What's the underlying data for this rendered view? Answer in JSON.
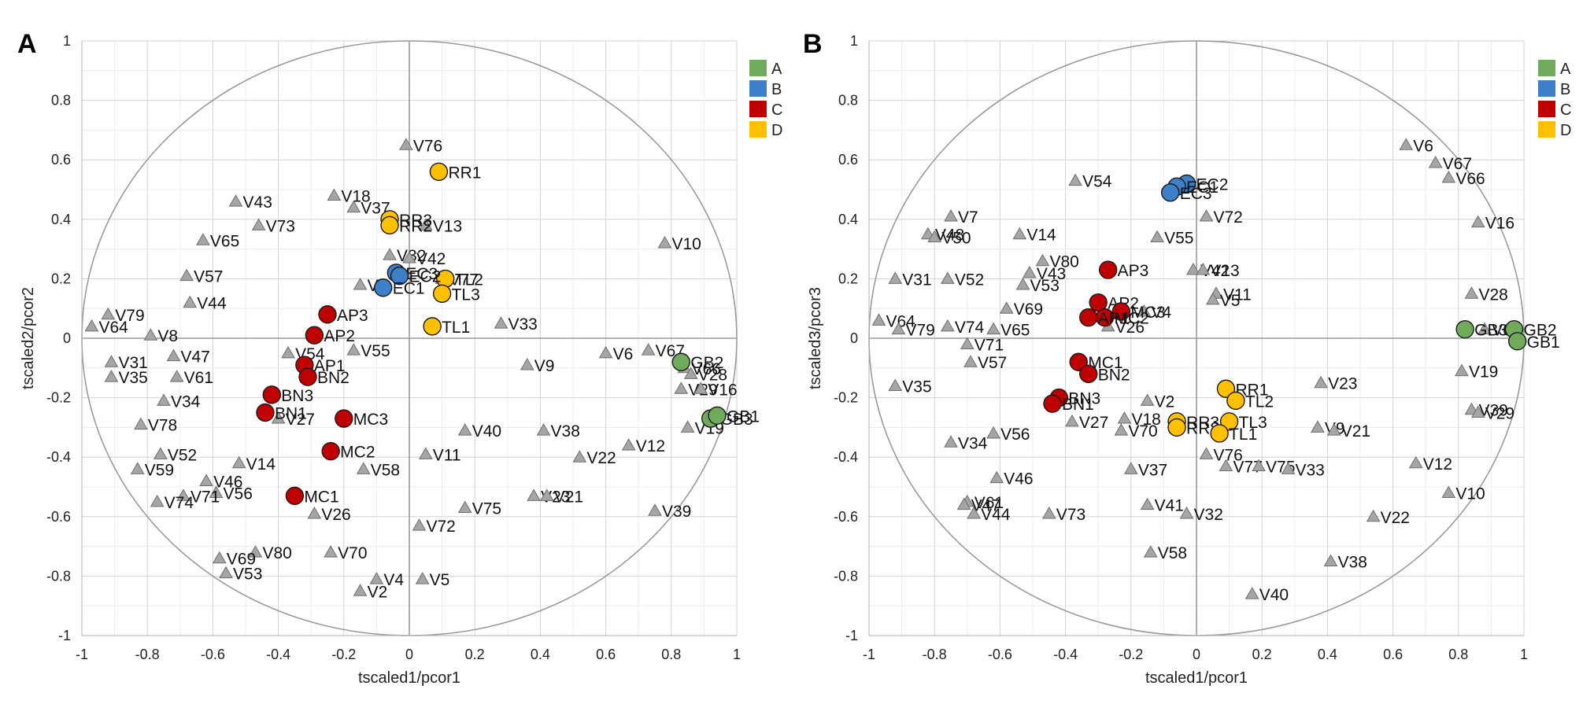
{
  "figure": {
    "panel_letters": [
      "A",
      "B"
    ]
  },
  "chart_data": [
    {
      "type": "scatter",
      "panel": "A",
      "title": "",
      "xlabel": "tscaled1/pcor1",
      "ylabel": "tscaled2/pcor2",
      "xlim": [
        -1,
        1
      ],
      "ylim": [
        -1,
        1
      ],
      "grid": true,
      "correlation_circle": true,
      "x_ticks": [
        "-1",
        "-0.8",
        "-0.6",
        "-0.4",
        "-0.2",
        "0",
        "0.2",
        "0.4",
        "0.6",
        "0.8",
        "1"
      ],
      "y_ticks": [
        "1",
        "0.8",
        "0.6",
        "0.4",
        "0.2",
        "0",
        "-0.2",
        "-0.4",
        "-0.6",
        "-0.8",
        "-1"
      ],
      "legend": {
        "position": "top-right",
        "entries": [
          {
            "label": "A",
            "color": "#6fab5a"
          },
          {
            "label": "B",
            "color": "#3d7fc8"
          },
          {
            "label": "C",
            "color": "#c00000"
          },
          {
            "label": "D",
            "color": "#ffc000"
          }
        ]
      },
      "variables": [
        {
          "label": "V76",
          "x": -0.01,
          "y": 0.65
        },
        {
          "label": "V43",
          "x": -0.53,
          "y": 0.46
        },
        {
          "label": "V18",
          "x": -0.23,
          "y": 0.48
        },
        {
          "label": "V37",
          "x": -0.17,
          "y": 0.44
        },
        {
          "label": "V13",
          "x": 0.05,
          "y": 0.38
        },
        {
          "label": "V73",
          "x": -0.46,
          "y": 0.38
        },
        {
          "label": "V65",
          "x": -0.63,
          "y": 0.33
        },
        {
          "label": "V10",
          "x": 0.78,
          "y": 0.32
        },
        {
          "label": "V32",
          "x": -0.06,
          "y": 0.28
        },
        {
          "label": "V42",
          "x": 0.0,
          "y": 0.27
        },
        {
          "label": "V57",
          "x": -0.68,
          "y": 0.21
        },
        {
          "label": "V7",
          "x": -0.15,
          "y": 0.18
        },
        {
          "label": "V77",
          "x": 0.1,
          "y": 0.2
        },
        {
          "label": "V44",
          "x": -0.67,
          "y": 0.12
        },
        {
          "label": "V79",
          "x": -0.92,
          "y": 0.08
        },
        {
          "label": "V64",
          "x": -0.97,
          "y": 0.04
        },
        {
          "label": "V8",
          "x": -0.79,
          "y": 0.01
        },
        {
          "label": "V33",
          "x": 0.28,
          "y": 0.05
        },
        {
          "label": "V55",
          "x": -0.17,
          "y": -0.04
        },
        {
          "label": "V54",
          "x": -0.37,
          "y": -0.05
        },
        {
          "label": "V47",
          "x": -0.72,
          "y": -0.06
        },
        {
          "label": "V31",
          "x": -0.91,
          "y": -0.08
        },
        {
          "label": "V6",
          "x": 0.6,
          "y": -0.05
        },
        {
          "label": "V67",
          "x": 0.73,
          "y": -0.04
        },
        {
          "label": "V9",
          "x": 0.36,
          "y": -0.09
        },
        {
          "label": "V35",
          "x": -0.91,
          "y": -0.13
        },
        {
          "label": "V61",
          "x": -0.71,
          "y": -0.13
        },
        {
          "label": "V66",
          "x": 0.84,
          "y": -0.1
        },
        {
          "label": "V28",
          "x": 0.86,
          "y": -0.12
        },
        {
          "label": "V34",
          "x": -0.75,
          "y": -0.21
        },
        {
          "label": "V29",
          "x": 0.83,
          "y": -0.17
        },
        {
          "label": "V16",
          "x": 0.89,
          "y": -0.17
        },
        {
          "label": "V27",
          "x": -0.4,
          "y": -0.27
        },
        {
          "label": "V78",
          "x": -0.82,
          "y": -0.29
        },
        {
          "label": "V40",
          "x": 0.17,
          "y": -0.31
        },
        {
          "label": "V38",
          "x": 0.41,
          "y": -0.31
        },
        {
          "label": "V19",
          "x": 0.85,
          "y": -0.3
        },
        {
          "label": "V12",
          "x": 0.67,
          "y": -0.36
        },
        {
          "label": "V52",
          "x": -0.76,
          "y": -0.39
        },
        {
          "label": "V11",
          "x": 0.05,
          "y": -0.39
        },
        {
          "label": "V22",
          "x": 0.52,
          "y": -0.4
        },
        {
          "label": "V14",
          "x": -0.52,
          "y": -0.42
        },
        {
          "label": "V58",
          "x": -0.14,
          "y": -0.44
        },
        {
          "label": "V59",
          "x": -0.83,
          "y": -0.44
        },
        {
          "label": "V46",
          "x": -0.62,
          "y": -0.48
        },
        {
          "label": "V56",
          "x": -0.59,
          "y": -0.52
        },
        {
          "label": "V71",
          "x": -0.69,
          "y": -0.53
        },
        {
          "label": "V74",
          "x": -0.77,
          "y": -0.55
        },
        {
          "label": "V23",
          "x": 0.38,
          "y": -0.53
        },
        {
          "label": "V21",
          "x": 0.42,
          "y": -0.53
        },
        {
          "label": "V75",
          "x": 0.17,
          "y": -0.57
        },
        {
          "label": "V39",
          "x": 0.75,
          "y": -0.58
        },
        {
          "label": "V26",
          "x": -0.29,
          "y": -0.59
        },
        {
          "label": "V72",
          "x": 0.03,
          "y": -0.63
        },
        {
          "label": "V80",
          "x": -0.47,
          "y": -0.72
        },
        {
          "label": "V70",
          "x": -0.24,
          "y": -0.72
        },
        {
          "label": "V69",
          "x": -0.58,
          "y": -0.74
        },
        {
          "label": "V53",
          "x": -0.56,
          "y": -0.79
        },
        {
          "label": "V4",
          "x": -0.1,
          "y": -0.81
        },
        {
          "label": "V5",
          "x": 0.04,
          "y": -0.81
        },
        {
          "label": "V2",
          "x": -0.15,
          "y": -0.85
        }
      ],
      "observations": [
        {
          "label": "RR1",
          "group": "D",
          "x": 0.09,
          "y": 0.56
        },
        {
          "label": "RR3",
          "group": "D",
          "x": -0.06,
          "y": 0.4
        },
        {
          "label": "RR2",
          "group": "D",
          "x": -0.06,
          "y": 0.38
        },
        {
          "label": "TL2",
          "group": "D",
          "x": 0.11,
          "y": 0.2
        },
        {
          "label": "TL3",
          "group": "D",
          "x": 0.1,
          "y": 0.15
        },
        {
          "label": "TL1",
          "group": "D",
          "x": 0.07,
          "y": 0.04
        },
        {
          "label": "EC3",
          "group": "B",
          "x": -0.04,
          "y": 0.22
        },
        {
          "label": "EC2",
          "group": "B",
          "x": -0.03,
          "y": 0.21
        },
        {
          "label": "EC1",
          "group": "B",
          "x": -0.08,
          "y": 0.17
        },
        {
          "label": "AP3",
          "group": "C",
          "x": -0.25,
          "y": 0.08
        },
        {
          "label": "AP2",
          "group": "C",
          "x": -0.29,
          "y": 0.01
        },
        {
          "label": "AP1",
          "group": "C",
          "x": -0.32,
          "y": -0.09
        },
        {
          "label": "BN2",
          "group": "C",
          "x": -0.31,
          "y": -0.13
        },
        {
          "label": "BN3",
          "group": "C",
          "x": -0.42,
          "y": -0.19
        },
        {
          "label": "BN1",
          "group": "C",
          "x": -0.44,
          "y": -0.25
        },
        {
          "label": "MC3",
          "group": "C",
          "x": -0.2,
          "y": -0.27
        },
        {
          "label": "MC2",
          "group": "C",
          "x": -0.24,
          "y": -0.38
        },
        {
          "label": "MC1",
          "group": "C",
          "x": -0.35,
          "y": -0.53
        },
        {
          "label": "GB2",
          "group": "A",
          "x": 0.83,
          "y": -0.08
        },
        {
          "label": "GB3",
          "group": "A",
          "x": 0.92,
          "y": -0.27
        },
        {
          "label": "GB1",
          "group": "A",
          "x": 0.94,
          "y": -0.26
        }
      ]
    },
    {
      "type": "scatter",
      "panel": "B",
      "title": "",
      "xlabel": "tscaled1/pcor1",
      "ylabel": "tscaled3/pcor3",
      "xlim": [
        -1,
        1
      ],
      "ylim": [
        -1,
        1
      ],
      "grid": true,
      "correlation_circle": true,
      "x_ticks": [
        "-1",
        "-0.8",
        "-0.6",
        "-0.4",
        "-0.2",
        "0",
        "0.2",
        "0.4",
        "0.6",
        "0.8",
        "1"
      ],
      "y_ticks": [
        "1",
        "0.8",
        "0.6",
        "0.4",
        "0.2",
        "0",
        "-0.2",
        "-0.4",
        "-0.6",
        "-0.8",
        "-1"
      ],
      "legend": {
        "position": "top-right",
        "entries": [
          {
            "label": "A",
            "color": "#6fab5a"
          },
          {
            "label": "B",
            "color": "#3d7fc8"
          },
          {
            "label": "C",
            "color": "#c00000"
          },
          {
            "label": "D",
            "color": "#ffc000"
          }
        ]
      },
      "variables": [
        {
          "label": "V6",
          "x": 0.64,
          "y": 0.65
        },
        {
          "label": "V67",
          "x": 0.73,
          "y": 0.59
        },
        {
          "label": "V66",
          "x": 0.77,
          "y": 0.54
        },
        {
          "label": "V54",
          "x": -0.37,
          "y": 0.53
        },
        {
          "label": "V72",
          "x": 0.03,
          "y": 0.41
        },
        {
          "label": "V7",
          "x": -0.75,
          "y": 0.41
        },
        {
          "label": "V16",
          "x": 0.86,
          "y": 0.39
        },
        {
          "label": "V48",
          "x": -0.82,
          "y": 0.35
        },
        {
          "label": "V50",
          "x": -0.8,
          "y": 0.34
        },
        {
          "label": "V14",
          "x": -0.54,
          "y": 0.35
        },
        {
          "label": "V55",
          "x": -0.12,
          "y": 0.34
        },
        {
          "label": "V80",
          "x": -0.47,
          "y": 0.26
        },
        {
          "label": "V42",
          "x": -0.01,
          "y": 0.23
        },
        {
          "label": "V13",
          "x": 0.02,
          "y": 0.23
        },
        {
          "label": "V43",
          "x": -0.51,
          "y": 0.22
        },
        {
          "label": "V31",
          "x": -0.92,
          "y": 0.2
        },
        {
          "label": "V52",
          "x": -0.76,
          "y": 0.2
        },
        {
          "label": "V53",
          "x": -0.53,
          "y": 0.18
        },
        {
          "label": "V11",
          "x": 0.06,
          "y": 0.15
        },
        {
          "label": "V28",
          "x": 0.84,
          "y": 0.15
        },
        {
          "label": "V5",
          "x": 0.05,
          "y": 0.13
        },
        {
          "label": "V69",
          "x": -0.58,
          "y": 0.1
        },
        {
          "label": "V4",
          "x": -0.16,
          "y": 0.09
        },
        {
          "label": "V26",
          "x": -0.27,
          "y": 0.04
        },
        {
          "label": "V64",
          "x": -0.97,
          "y": 0.06
        },
        {
          "label": "V79",
          "x": -0.91,
          "y": 0.03
        },
        {
          "label": "V74",
          "x": -0.76,
          "y": 0.04
        },
        {
          "label": "V65",
          "x": -0.62,
          "y": 0.03
        },
        {
          "label": "V60",
          "x": 0.88,
          "y": 0.03
        },
        {
          "label": "V71",
          "x": -0.7,
          "y": -0.02
        },
        {
          "label": "V57",
          "x": -0.69,
          "y": -0.08
        },
        {
          "label": "V19",
          "x": 0.81,
          "y": -0.11
        },
        {
          "label": "V35",
          "x": -0.92,
          "y": -0.16
        },
        {
          "label": "V23",
          "x": 0.38,
          "y": -0.15
        },
        {
          "label": "V2",
          "x": -0.15,
          "y": -0.21
        },
        {
          "label": "V39",
          "x": 0.84,
          "y": -0.24
        },
        {
          "label": "V29",
          "x": 0.86,
          "y": -0.25
        },
        {
          "label": "V27",
          "x": -0.38,
          "y": -0.28
        },
        {
          "label": "V18",
          "x": -0.22,
          "y": -0.27
        },
        {
          "label": "V70",
          "x": -0.23,
          "y": -0.31
        },
        {
          "label": "V9",
          "x": 0.37,
          "y": -0.3
        },
        {
          "label": "V21",
          "x": 0.42,
          "y": -0.31
        },
        {
          "label": "V56",
          "x": -0.62,
          "y": -0.32
        },
        {
          "label": "V34",
          "x": -0.75,
          "y": -0.35
        },
        {
          "label": "V76",
          "x": 0.03,
          "y": -0.39
        },
        {
          "label": "V77",
          "x": 0.09,
          "y": -0.43
        },
        {
          "label": "V75",
          "x": 0.19,
          "y": -0.43
        },
        {
          "label": "V33",
          "x": 0.28,
          "y": -0.44
        },
        {
          "label": "V37",
          "x": -0.2,
          "y": -0.44
        },
        {
          "label": "V12",
          "x": 0.67,
          "y": -0.42
        },
        {
          "label": "V46",
          "x": -0.61,
          "y": -0.47
        },
        {
          "label": "V10",
          "x": 0.77,
          "y": -0.52
        },
        {
          "label": "V61",
          "x": -0.7,
          "y": -0.55
        },
        {
          "label": "V41",
          "x": -0.15,
          "y": -0.56
        },
        {
          "label": "V47",
          "x": -0.71,
          "y": -0.56
        },
        {
          "label": "V44",
          "x": -0.68,
          "y": -0.59
        },
        {
          "label": "V73",
          "x": -0.45,
          "y": -0.59
        },
        {
          "label": "V32",
          "x": -0.03,
          "y": -0.59
        },
        {
          "label": "V22",
          "x": 0.54,
          "y": -0.6
        },
        {
          "label": "V58",
          "x": -0.14,
          "y": -0.72
        },
        {
          "label": "V38",
          "x": 0.41,
          "y": -0.75
        },
        {
          "label": "V40",
          "x": 0.17,
          "y": -0.86
        }
      ],
      "observations": [
        {
          "label": "EC2",
          "group": "B",
          "x": -0.03,
          "y": 0.52
        },
        {
          "label": "EC1",
          "group": "B",
          "x": -0.06,
          "y": 0.51
        },
        {
          "label": "EC3",
          "group": "B",
          "x": -0.08,
          "y": 0.49
        },
        {
          "label": "AP3",
          "group": "C",
          "x": -0.27,
          "y": 0.23
        },
        {
          "label": "AP2",
          "group": "C",
          "x": -0.3,
          "y": 0.12
        },
        {
          "label": "MC3",
          "group": "C",
          "x": -0.23,
          "y": 0.09
        },
        {
          "label": "MC2",
          "group": "C",
          "x": -0.28,
          "y": 0.07
        },
        {
          "label": "AP1",
          "group": "C",
          "x": -0.33,
          "y": 0.07
        },
        {
          "label": "MC1",
          "group": "C",
          "x": -0.36,
          "y": -0.08
        },
        {
          "label": "BN2",
          "group": "C",
          "x": -0.33,
          "y": -0.12
        },
        {
          "label": "BN3",
          "group": "C",
          "x": -0.42,
          "y": -0.2
        },
        {
          "label": "BN1",
          "group": "C",
          "x": -0.44,
          "y": -0.22
        },
        {
          "label": "RR1",
          "group": "D",
          "x": 0.09,
          "y": -0.17
        },
        {
          "label": "TL2",
          "group": "D",
          "x": 0.12,
          "y": -0.21
        },
        {
          "label": "RR3",
          "group": "D",
          "x": -0.06,
          "y": -0.28
        },
        {
          "label": "RR2",
          "group": "D",
          "x": -0.06,
          "y": -0.3
        },
        {
          "label": "TL3",
          "group": "D",
          "x": 0.1,
          "y": -0.28
        },
        {
          "label": "TL1",
          "group": "D",
          "x": 0.07,
          "y": -0.32
        },
        {
          "label": "GB3",
          "group": "A",
          "x": 0.82,
          "y": 0.03
        },
        {
          "label": "GB2",
          "group": "A",
          "x": 0.97,
          "y": 0.03
        },
        {
          "label": "GB1",
          "group": "A",
          "x": 0.98,
          "y": -0.01
        }
      ]
    }
  ]
}
